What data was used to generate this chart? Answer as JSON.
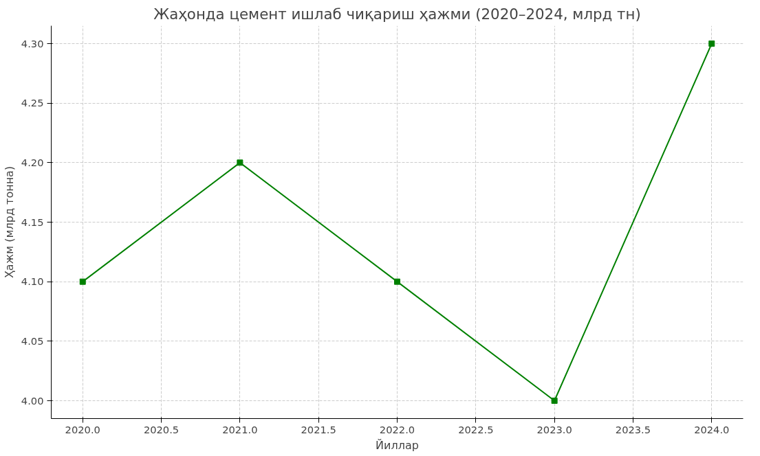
{
  "chart_data": {
    "type": "line",
    "title": "Жаҳонда цемент ишлаб чиқариш ҳажми (2020–2024, млрд тн)",
    "xlabel": "Йиллар",
    "ylabel": "Ҳажм (млрд тонна)",
    "x": [
      2020,
      2021,
      2022,
      2023,
      2024
    ],
    "series": [
      {
        "color": "#008000",
        "values": [
          4.1,
          4.2,
          4.1,
          4.0,
          4.3
        ]
      }
    ],
    "marker": "square",
    "line_style": "solid",
    "grid": true,
    "xlim": [
      2019.8,
      2024.2
    ],
    "ylim": [
      3.985,
      4.315
    ],
    "xticks": [
      {
        "value": 2020,
        "label": "2020.0"
      },
      {
        "value": 2020.5,
        "label": "2020.5"
      },
      {
        "value": 2021,
        "label": "2021.0"
      },
      {
        "value": 2021.5,
        "label": "2021.5"
      },
      {
        "value": 2022,
        "label": "2022.0"
      },
      {
        "value": 2022.5,
        "label": "2022.5"
      },
      {
        "value": 2023,
        "label": "2023.0"
      },
      {
        "value": 2023.5,
        "label": "2023.5"
      },
      {
        "value": 2024,
        "label": "2024.0"
      }
    ],
    "yticks": [
      {
        "value": 4.0,
        "label": "4.00"
      },
      {
        "value": 4.05,
        "label": "4.05"
      },
      {
        "value": 4.1,
        "label": "4.10"
      },
      {
        "value": 4.15,
        "label": "4.15"
      },
      {
        "value": 4.2,
        "label": "4.20"
      },
      {
        "value": 4.25,
        "label": "4.25"
      },
      {
        "value": 4.3,
        "label": "4.30"
      }
    ]
  }
}
